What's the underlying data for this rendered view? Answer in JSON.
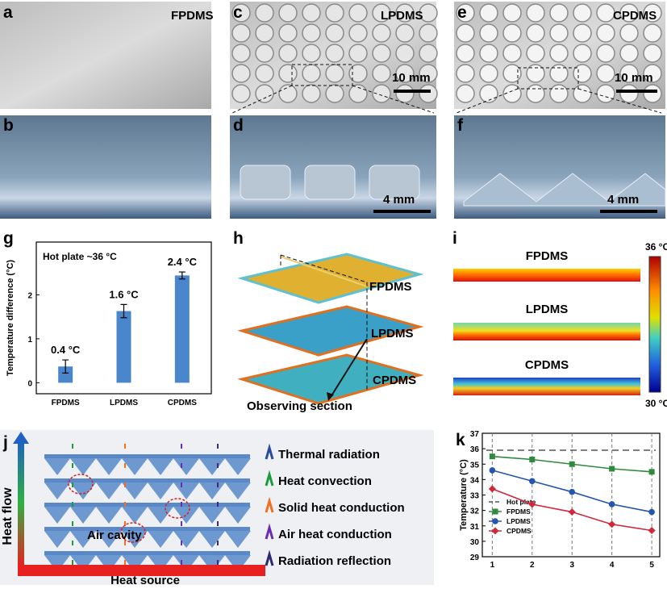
{
  "panels": {
    "a": {
      "letter": "a",
      "label": "FPDMS"
    },
    "b": {
      "letter": "b"
    },
    "c": {
      "letter": "c",
      "label": "LPDMS",
      "scale_bar": "10 mm"
    },
    "d": {
      "letter": "d",
      "scale_bar": "4 mm"
    },
    "e": {
      "letter": "e",
      "label": "CPDMS",
      "scale_bar": "10 mm"
    },
    "f": {
      "letter": "f",
      "scale_bar": "4 mm"
    },
    "g": {
      "letter": "g"
    },
    "h": {
      "letter": "h",
      "layers": [
        "FPDMS",
        "LPDMS",
        "CPDMS"
      ],
      "annotation": "Observing section"
    },
    "i": {
      "letter": "i",
      "rows": [
        "FPDMS",
        "LPDMS",
        "CPDMS"
      ],
      "colorbar_max": "36 °C",
      "colorbar_min": "30 °C"
    },
    "j": {
      "letter": "j",
      "axis_label": "Heat flow",
      "source": "Heat source",
      "annotation": "Air cavity",
      "legend": [
        "Thermal radiation",
        "Heat convection",
        "Solid heat conduction",
        "Air heat conduction",
        "Radiation reflection"
      ]
    },
    "k": {
      "letter": "k"
    }
  },
  "chart_data": [
    {
      "type": "bar",
      "annotation": "Hot plate ~36 °C",
      "y_label": "Temperature difference (°C)",
      "categories": [
        "FPDMS",
        "LPDMS",
        "CPDMS"
      ],
      "values": [
        0.37,
        1.63,
        2.44
      ],
      "errors": [
        0.15,
        0.15,
        0.08
      ],
      "value_labels": [
        "0.4 °C",
        "1.6 °C",
        "2.4 °C"
      ],
      "color": "#4a86cc",
      "ylim": [
        -0.25,
        3.2
      ],
      "yticks": [
        0,
        1,
        2
      ]
    },
    {
      "type": "line",
      "y_label": "Temperature (°C)",
      "x": [
        1,
        2,
        3,
        4,
        5
      ],
      "series": [
        {
          "name": "FPDMS",
          "color": "#2e8b3e",
          "marker": "square",
          "values": [
            35.5,
            35.3,
            35.0,
            34.7,
            34.5
          ]
        },
        {
          "name": "LPDMS",
          "color": "#2456b0",
          "marker": "circle",
          "values": [
            34.6,
            33.9,
            33.2,
            32.4,
            31.9
          ]
        },
        {
          "name": "CPDMS",
          "color": "#d0283a",
          "marker": "diamond",
          "values": [
            33.4,
            32.4,
            31.9,
            31.1,
            30.7
          ]
        }
      ],
      "reference": {
        "name": "Hot plate",
        "value": 35.9,
        "color": "#555555"
      },
      "xlim": [
        0.75,
        5.2
      ],
      "xticks": [
        1,
        2,
        3,
        4,
        5
      ],
      "ylim": [
        29,
        37
      ],
      "yticks": [
        29,
        30,
        31,
        32,
        33,
        34,
        35,
        36,
        37
      ],
      "grid": "x",
      "legend": "lower left"
    }
  ]
}
